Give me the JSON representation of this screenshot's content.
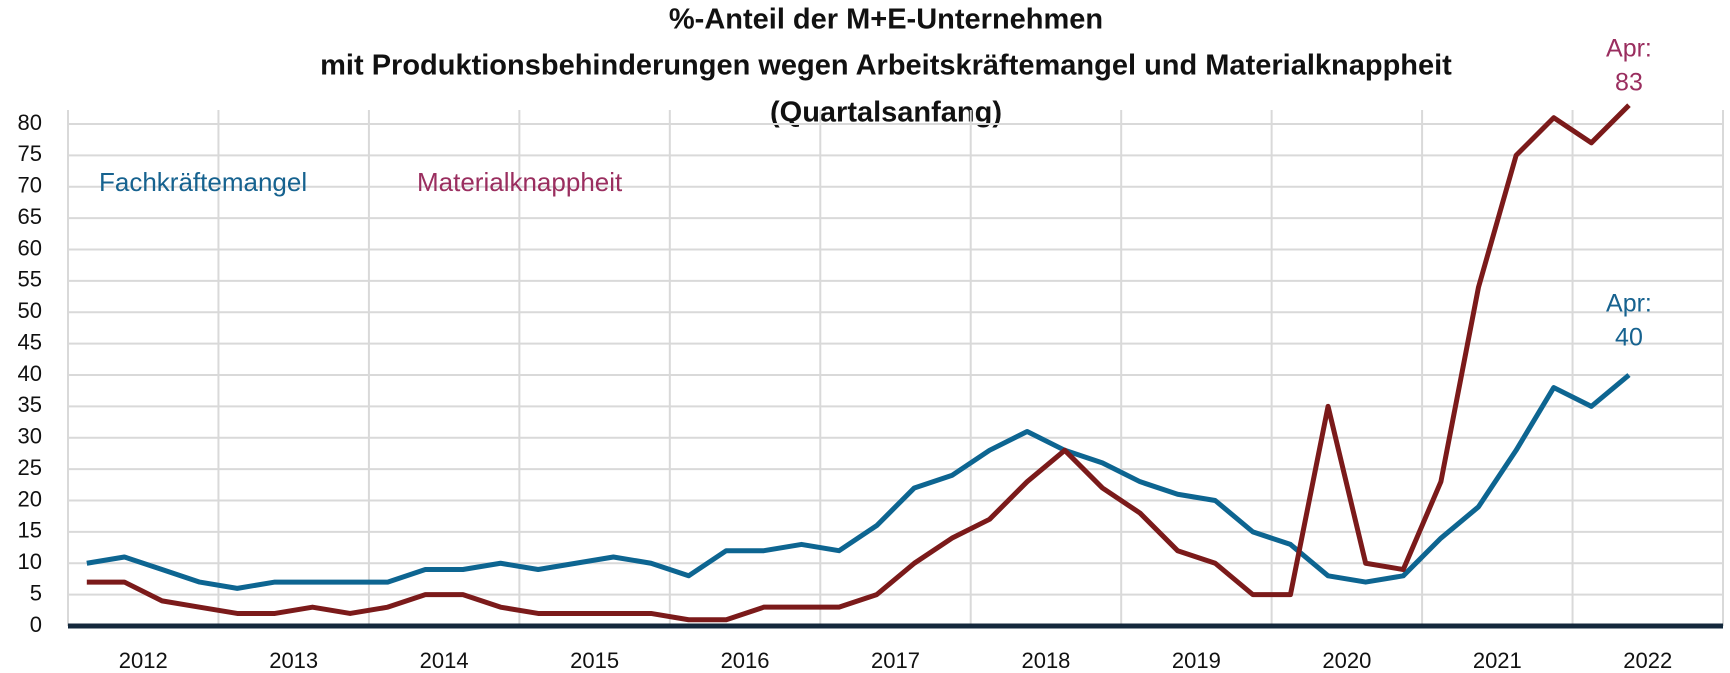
{
  "chart_data": {
    "type": "line",
    "title": [
      "%-Anteil der M+E-Unternehmen",
      "mit Produktionsbehinderungen wegen Arbeitskräftemangel und Materialknappheit",
      "(Quartalsanfang)"
    ],
    "x": [
      2012,
      2012.25,
      2012.5,
      2012.75,
      2013,
      2013.25,
      2013.5,
      2013.75,
      2014,
      2014.25,
      2014.5,
      2014.75,
      2015,
      2015.25,
      2015.5,
      2015.75,
      2016,
      2016.25,
      2016.5,
      2016.75,
      2017,
      2017.25,
      2017.5,
      2017.75,
      2018,
      2018.25,
      2018.5,
      2018.75,
      2019,
      2019.25,
      2019.5,
      2019.75,
      2020,
      2020.25,
      2020.5,
      2020.75,
      2021,
      2021.25,
      2021.5,
      2021.75,
      2022,
      2022.25
    ],
    "series": [
      {
        "name": "Fachkräftemangel",
        "color": "#0d6591",
        "text_color": "#16628f",
        "values": [
          10,
          11,
          9,
          7,
          6,
          7,
          7,
          7,
          7,
          9,
          9,
          10,
          9,
          10,
          11,
          10,
          8,
          12,
          12,
          13,
          12,
          16,
          22,
          24,
          28,
          31,
          28,
          26,
          23,
          21,
          20,
          15,
          13,
          8,
          7,
          8,
          14,
          19,
          28,
          38,
          35,
          40
        ]
      },
      {
        "name": "Materialknappheit",
        "color": "#7b1a1a",
        "text_color": "#9a2e5f",
        "values": [
          7,
          7,
          4,
          3,
          2,
          2,
          3,
          2,
          3,
          5,
          5,
          3,
          2,
          2,
          2,
          2,
          1,
          1,
          3,
          3,
          3,
          5,
          10,
          14,
          17,
          23,
          28,
          22,
          18,
          12,
          10,
          5,
          5,
          35,
          10,
          9,
          23,
          54,
          75,
          81,
          77,
          83
        ]
      }
    ],
    "annotations": [
      {
        "series": 0,
        "text": "Apr:",
        "value": 40
      },
      {
        "series": 1,
        "text": "Apr:",
        "value": 83
      }
    ],
    "xlim": [
      2011.875,
      2022.875
    ],
    "xticks": [
      2012,
      2013,
      2014,
      2015,
      2016,
      2017,
      2018,
      2019,
      2020,
      2021,
      2022
    ],
    "ylim": [
      0,
      80
    ],
    "yticks": [
      0,
      5,
      10,
      15,
      20,
      25,
      30,
      35,
      40,
      45,
      50,
      55,
      60,
      65,
      70,
      75,
      80
    ],
    "grid": true
  }
}
